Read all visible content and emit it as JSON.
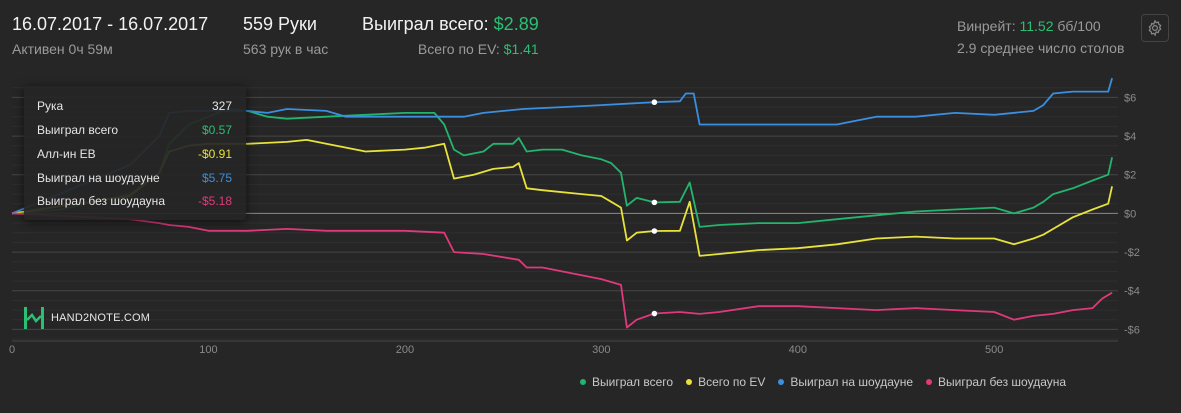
{
  "header": {
    "date_range": "16.07.2017 - 16.07.2017",
    "active_label": "Активен 0ч 59м",
    "hands_label": "559 Руки",
    "hands_per_hour": "563 рук в час",
    "won_total_label": "Выиграл всего:",
    "won_total_value": "$2.89",
    "ev_label": "Всего по EV:",
    "ev_value": "$1.41",
    "winrate_label": "Винрейт:",
    "winrate_value": "11.52",
    "winrate_unit": "бб/100",
    "avg_tables": "2.9 среднее число столов"
  },
  "tooltip": {
    "hand_label": "Рука",
    "hand_value": "327",
    "won_label": "Выиграл всего",
    "won_value": "$0.57",
    "allin_label": "Алл-ин EB",
    "allin_value": "-$0.91",
    "sd_label": "Выиграл на шоудауне",
    "sd_value": "$5.75",
    "nsd_label": "Выиграл без шоудауна",
    "nsd_value": "-$5.18"
  },
  "logo_text": "HAND2NOTE.COM",
  "icons": {
    "settings": "gear-icon",
    "logo": "hand2note-logo-icon"
  },
  "colors": {
    "won": "#23b46e",
    "ev": "#e8e23a",
    "showdown": "#3a8fe0",
    "non_showdown": "#e0397a",
    "background": "#262626"
  },
  "chart_data": {
    "type": "line",
    "x_ticks": [
      "0",
      "100",
      "200",
      "300",
      "400",
      "500"
    ],
    "y_ticks": [
      "-$6",
      "-$4",
      "-$2",
      "$0",
      "$2",
      "$4",
      "$6"
    ],
    "xlim": [
      0,
      563
    ],
    "ylim": [
      -6.6,
      6.9
    ],
    "grid": true,
    "legend_position": "bottom-right",
    "marker_x": 327,
    "series": [
      {
        "name": "Выиграл всего",
        "color": "#23b46e",
        "points": [
          [
            0,
            0
          ],
          [
            25,
            0.2
          ],
          [
            60,
            1.0
          ],
          [
            75,
            2.1
          ],
          [
            80,
            3.6
          ],
          [
            90,
            4.6
          ],
          [
            100,
            5.0
          ],
          [
            110,
            5.4
          ],
          [
            120,
            5.3
          ],
          [
            130,
            5.0
          ],
          [
            140,
            4.9
          ],
          [
            160,
            5.0
          ],
          [
            180,
            5.1
          ],
          [
            200,
            5.2
          ],
          [
            215,
            5.2
          ],
          [
            220,
            4.6
          ],
          [
            225,
            3.3
          ],
          [
            230,
            3.0
          ],
          [
            240,
            3.2
          ],
          [
            245,
            3.6
          ],
          [
            255,
            3.6
          ],
          [
            258,
            3.9
          ],
          [
            262,
            3.2
          ],
          [
            270,
            3.3
          ],
          [
            280,
            3.3
          ],
          [
            290,
            3.0
          ],
          [
            300,
            2.8
          ],
          [
            305,
            2.6
          ],
          [
            310,
            2.1
          ],
          [
            313,
            0.4
          ],
          [
            318,
            0.8
          ],
          [
            327,
            0.57
          ],
          [
            340,
            0.6
          ],
          [
            345,
            1.6
          ],
          [
            350,
            -0.7
          ],
          [
            360,
            -0.6
          ],
          [
            380,
            -0.5
          ],
          [
            400,
            -0.5
          ],
          [
            420,
            -0.3
          ],
          [
            440,
            -0.1
          ],
          [
            460,
            0.1
          ],
          [
            480,
            0.2
          ],
          [
            500,
            0.3
          ],
          [
            510,
            0.0
          ],
          [
            520,
            0.3
          ],
          [
            525,
            0.6
          ],
          [
            530,
            1.0
          ],
          [
            540,
            1.3
          ],
          [
            550,
            1.7
          ],
          [
            558,
            2.0
          ],
          [
            560,
            2.9
          ]
        ]
      },
      {
        "name": "Всего по EV",
        "color": "#e8e23a",
        "points": [
          [
            0,
            0
          ],
          [
            60,
            0.9
          ],
          [
            75,
            2.1
          ],
          [
            80,
            3.2
          ],
          [
            90,
            3.5
          ],
          [
            100,
            3.6
          ],
          [
            120,
            3.6
          ],
          [
            140,
            3.7
          ],
          [
            150,
            3.8
          ],
          [
            160,
            3.6
          ],
          [
            180,
            3.2
          ],
          [
            200,
            3.3
          ],
          [
            210,
            3.4
          ],
          [
            220,
            3.6
          ],
          [
            225,
            1.8
          ],
          [
            235,
            2.0
          ],
          [
            245,
            2.3
          ],
          [
            255,
            2.4
          ],
          [
            258,
            2.6
          ],
          [
            262,
            1.3
          ],
          [
            270,
            1.2
          ],
          [
            290,
            1.0
          ],
          [
            300,
            0.9
          ],
          [
            305,
            0.6
          ],
          [
            310,
            0.3
          ],
          [
            313,
            -1.4
          ],
          [
            318,
            -1.0
          ],
          [
            327,
            -0.91
          ],
          [
            340,
            -0.9
          ],
          [
            345,
            0.6
          ],
          [
            350,
            -2.2
          ],
          [
            360,
            -2.1
          ],
          [
            380,
            -1.9
          ],
          [
            400,
            -1.8
          ],
          [
            420,
            -1.6
          ],
          [
            440,
            -1.3
          ],
          [
            460,
            -1.2
          ],
          [
            480,
            -1.3
          ],
          [
            500,
            -1.3
          ],
          [
            510,
            -1.6
          ],
          [
            520,
            -1.3
          ],
          [
            525,
            -1.1
          ],
          [
            530,
            -0.8
          ],
          [
            540,
            -0.2
          ],
          [
            550,
            0.2
          ],
          [
            558,
            0.5
          ],
          [
            560,
            1.4
          ]
        ]
      },
      {
        "name": "Выиграл на шоудауне",
        "color": "#3a8fe0",
        "points": [
          [
            0,
            0
          ],
          [
            60,
            2.5
          ],
          [
            75,
            4.0
          ],
          [
            80,
            5.2
          ],
          [
            90,
            5.3
          ],
          [
            100,
            5.3
          ],
          [
            120,
            5.3
          ],
          [
            130,
            5.2
          ],
          [
            140,
            5.4
          ],
          [
            160,
            5.3
          ],
          [
            170,
            5.0
          ],
          [
            200,
            5.0
          ],
          [
            230,
            5.0
          ],
          [
            240,
            5.2
          ],
          [
            260,
            5.4
          ],
          [
            280,
            5.5
          ],
          [
            300,
            5.6
          ],
          [
            327,
            5.75
          ],
          [
            340,
            5.8
          ],
          [
            343,
            6.2
          ],
          [
            347,
            6.2
          ],
          [
            350,
            4.6
          ],
          [
            380,
            4.6
          ],
          [
            400,
            4.6
          ],
          [
            420,
            4.6
          ],
          [
            425,
            4.7
          ],
          [
            440,
            5.0
          ],
          [
            460,
            5.0
          ],
          [
            480,
            5.2
          ],
          [
            500,
            5.1
          ],
          [
            520,
            5.3
          ],
          [
            525,
            5.6
          ],
          [
            530,
            6.2
          ],
          [
            540,
            6.3
          ],
          [
            558,
            6.3
          ],
          [
            560,
            7.0
          ]
        ]
      },
      {
        "name": "Выиграл без шоудауна",
        "color": "#e0397a",
        "points": [
          [
            0,
            0
          ],
          [
            60,
            -0.3
          ],
          [
            75,
            -0.5
          ],
          [
            80,
            -0.6
          ],
          [
            90,
            -0.7
          ],
          [
            100,
            -0.9
          ],
          [
            120,
            -0.9
          ],
          [
            140,
            -0.8
          ],
          [
            160,
            -0.9
          ],
          [
            180,
            -0.9
          ],
          [
            200,
            -0.9
          ],
          [
            220,
            -1.0
          ],
          [
            225,
            -2.0
          ],
          [
            240,
            -2.1
          ],
          [
            258,
            -2.4
          ],
          [
            262,
            -2.8
          ],
          [
            270,
            -2.8
          ],
          [
            290,
            -3.2
          ],
          [
            300,
            -3.4
          ],
          [
            310,
            -3.7
          ],
          [
            313,
            -5.9
          ],
          [
            318,
            -5.5
          ],
          [
            327,
            -5.18
          ],
          [
            340,
            -5.1
          ],
          [
            350,
            -5.2
          ],
          [
            360,
            -5.1
          ],
          [
            380,
            -4.8
          ],
          [
            400,
            -4.8
          ],
          [
            420,
            -4.9
          ],
          [
            440,
            -5.0
          ],
          [
            460,
            -4.9
          ],
          [
            480,
            -5.0
          ],
          [
            500,
            -5.1
          ],
          [
            510,
            -5.5
          ],
          [
            520,
            -5.3
          ],
          [
            530,
            -5.2
          ],
          [
            540,
            -5.0
          ],
          [
            550,
            -4.9
          ],
          [
            555,
            -4.4
          ],
          [
            560,
            -4.1
          ]
        ]
      }
    ]
  }
}
